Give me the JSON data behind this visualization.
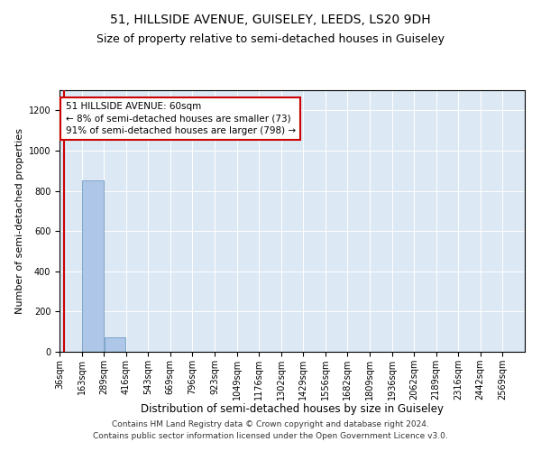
{
  "title": "51, HILLSIDE AVENUE, GUISELEY, LEEDS, LS20 9DH",
  "subtitle": "Size of property relative to semi-detached houses in Guiseley",
  "xlabel": "Distribution of semi-detached houses by size in Guiseley",
  "ylabel": "Number of semi-detached properties",
  "footer_line1": "Contains HM Land Registry data © Crown copyright and database right 2024.",
  "footer_line2": "Contains public sector information licensed under the Open Government Licence v3.0.",
  "annotation_line1": "51 HILLSIDE AVENUE: 60sqm",
  "annotation_line2": "← 8% of semi-detached houses are smaller (73)",
  "annotation_line3": "91% of semi-detached houses are larger (798) →",
  "property_size": 60,
  "red_line_x": 60,
  "bar_bins": [
    36,
    163,
    289,
    416,
    543,
    669,
    796,
    923,
    1049,
    1176,
    1302,
    1429,
    1556,
    1682,
    1809,
    1936,
    2062,
    2189,
    2316,
    2442,
    2569
  ],
  "bar_heights": [
    0,
    850,
    70,
    0,
    0,
    0,
    0,
    0,
    0,
    0,
    0,
    0,
    0,
    0,
    0,
    0,
    0,
    0,
    0,
    0
  ],
  "tick_labels": [
    "36sqm",
    "163sqm",
    "289sqm",
    "416sqm",
    "543sqm",
    "669sqm",
    "796sqm",
    "923sqm",
    "1049sqm",
    "1176sqm",
    "1302sqm",
    "1429sqm",
    "1556sqm",
    "1682sqm",
    "1809sqm",
    "1936sqm",
    "2062sqm",
    "2189sqm",
    "2316sqm",
    "2442sqm",
    "2569sqm"
  ],
  "bar_color": "#aec6e8",
  "bar_edge_color": "#6090b8",
  "bg_color": "#dde8f5",
  "grid_color": "#ffffff",
  "red_color": "#cc0000",
  "annotation_box_color": "#ffffff",
  "ylim": [
    0,
    1300
  ],
  "yticks": [
    0,
    200,
    400,
    600,
    800,
    1000,
    1200
  ],
  "title_fontsize": 10,
  "subtitle_fontsize": 9,
  "xlabel_fontsize": 8.5,
  "ylabel_fontsize": 8,
  "tick_fontsize": 7,
  "annotation_fontsize": 7.5,
  "footer_fontsize": 6.5
}
